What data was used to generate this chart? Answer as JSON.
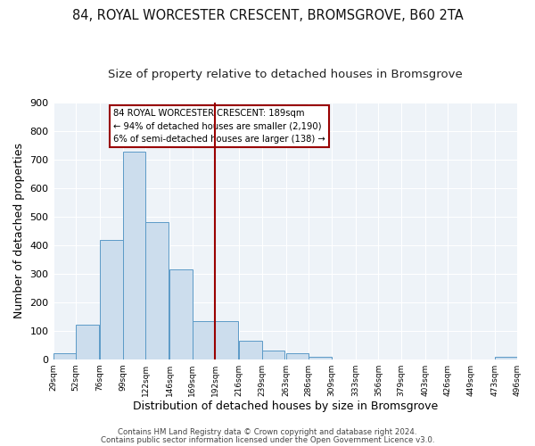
{
  "title1": "84, ROYAL WORCESTER CRESCENT, BROMSGROVE, B60 2TA",
  "title2": "Size of property relative to detached houses in Bromsgrove",
  "xlabel": "Distribution of detached houses by size in Bromsgrove",
  "ylabel": "Number of detached properties",
  "bar_left_edges": [
    29,
    52,
    76,
    99,
    122,
    146,
    169,
    192,
    216,
    239,
    263,
    286,
    309,
    333,
    356,
    379,
    403,
    426,
    449,
    473
  ],
  "bar_heights": [
    20,
    120,
    420,
    730,
    480,
    315,
    133,
    133,
    65,
    30,
    20,
    7,
    0,
    0,
    0,
    0,
    0,
    0,
    0,
    8
  ],
  "bin_width": 23,
  "bar_facecolor": "#ccdded",
  "bar_edgecolor": "#5b9ac7",
  "vline_x": 192,
  "vline_color": "#990000",
  "ylim": [
    0,
    900
  ],
  "yticks": [
    0,
    100,
    200,
    300,
    400,
    500,
    600,
    700,
    800,
    900
  ],
  "xtick_labels": [
    "29sqm",
    "52sqm",
    "76sqm",
    "99sqm",
    "122sqm",
    "146sqm",
    "169sqm",
    "192sqm",
    "216sqm",
    "239sqm",
    "263sqm",
    "286sqm",
    "309sqm",
    "333sqm",
    "356sqm",
    "379sqm",
    "403sqm",
    "426sqm",
    "449sqm",
    "473sqm",
    "496sqm"
  ],
  "annotation_line1": "84 ROYAL WORCESTER CRESCENT: 189sqm",
  "annotation_line2": "← 94% of detached houses are smaller (2,190)",
  "annotation_line3": "6% of semi-detached houses are larger (138) →",
  "footer1": "Contains HM Land Registry data © Crown copyright and database right 2024.",
  "footer2": "Contains public sector information licensed under the Open Government Licence v3.0.",
  "bg_color": "#ffffff",
  "plot_bg_color": "#eef3f8",
  "grid_color": "#ffffff",
  "title1_fontsize": 10.5,
  "title2_fontsize": 9.5,
  "xlabel_fontsize": 9,
  "ylabel_fontsize": 9
}
